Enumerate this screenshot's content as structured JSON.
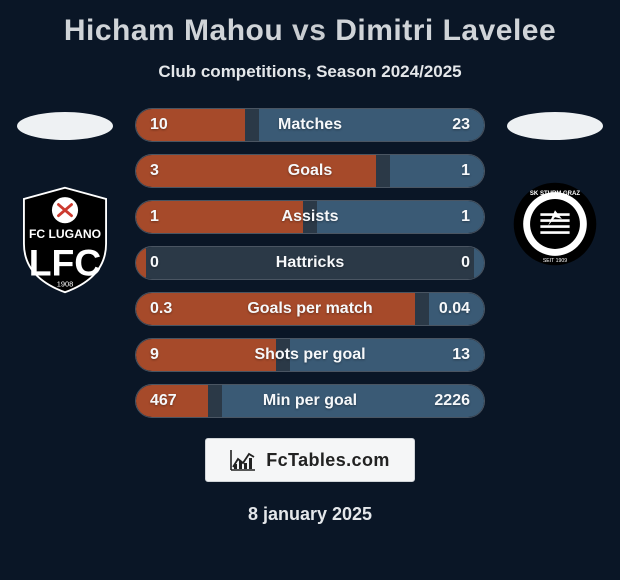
{
  "title": {
    "player1": "Hicham Mahou",
    "vs": "vs",
    "player2": "Dimitri Lavelee"
  },
  "subtitle": "Club competitions, Season 2024/2025",
  "colors": {
    "background": "#0a1626",
    "bar_track": "#2b3947",
    "left_bar": "#a64a2a",
    "right_bar": "#3a5a75",
    "text_light": "#f6f8fa",
    "border": "#4a5562",
    "ellipse": "#eef1f3"
  },
  "stats": [
    {
      "label": "Matches",
      "left_text": "10",
      "right_text": "23",
      "left_val": 10,
      "right_val": 23,
      "scale": "sum"
    },
    {
      "label": "Goals",
      "left_text": "3",
      "right_text": "1",
      "left_val": 3,
      "right_val": 1,
      "scale": "sum"
    },
    {
      "label": "Assists",
      "left_text": "1",
      "right_text": "1",
      "left_val": 1,
      "right_val": 1,
      "scale": "sum"
    },
    {
      "label": "Hattricks",
      "left_text": "0",
      "right_text": "0",
      "left_val": 0,
      "right_val": 0,
      "scale": "sum"
    },
    {
      "label": "Goals per match",
      "left_text": "0.3",
      "right_text": "0.04",
      "left_val": 0.3,
      "right_val": 0.04,
      "scale": "sum"
    },
    {
      "label": "Shots per goal",
      "left_text": "9",
      "right_text": "13",
      "left_val": 9,
      "right_val": 13,
      "scale": "sum"
    },
    {
      "label": "Min per goal",
      "left_text": "467",
      "right_text": "2226",
      "left_val": 467,
      "right_val": 2226,
      "scale": "sum"
    }
  ],
  "bar_style": {
    "min_pct": 6,
    "max_pct": 48,
    "zero_pct": 3
  },
  "footer_brand": "FcTables.com",
  "date": "8 january 2025",
  "club_left": {
    "name": "FC Lugano",
    "founded": "1908",
    "ring_color": "#000000",
    "accent": "#cc3a2f"
  },
  "club_right": {
    "name": "SK Sturm Graz",
    "founded": "SEIT 1909",
    "ring_color": "#000000"
  }
}
